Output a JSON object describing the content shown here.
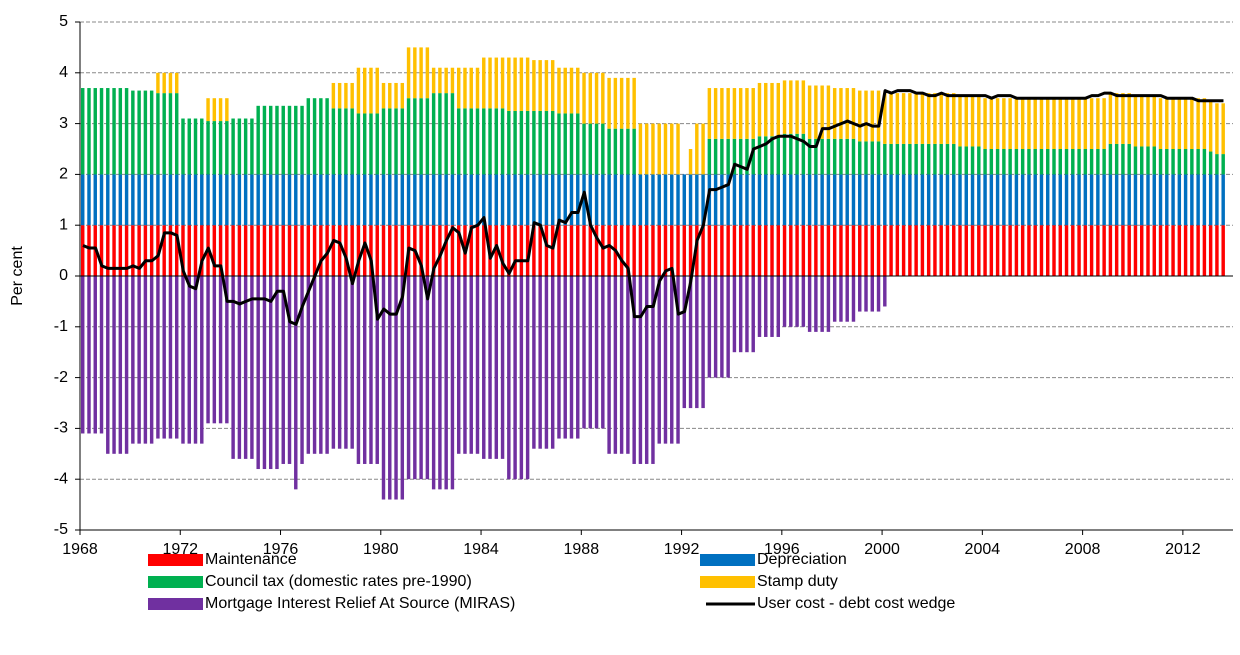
{
  "chart_data": {
    "type": "bar",
    "y_label": "Per cent",
    "xlim": [
      1968,
      2014
    ],
    "xticks": [
      1968,
      1972,
      1976,
      1980,
      1984,
      1988,
      1992,
      1996,
      2000,
      2004,
      2008,
      2012
    ],
    "ylim": [
      -5,
      5
    ],
    "yticks": [
      -5,
      -4,
      -3,
      -2,
      -1,
      0,
      1,
      2,
      3,
      4,
      5
    ],
    "grid": true,
    "x": [
      1968,
      1968.25,
      1968.5,
      1968.75,
      1969,
      1969.25,
      1969.5,
      1969.75,
      1970,
      1970.25,
      1970.5,
      1970.75,
      1971,
      1971.25,
      1971.5,
      1971.75,
      1972,
      1972.25,
      1972.5,
      1972.75,
      1973,
      1973.25,
      1973.5,
      1973.75,
      1974,
      1974.25,
      1974.5,
      1974.75,
      1975,
      1975.25,
      1975.5,
      1975.75,
      1976,
      1976.25,
      1976.5,
      1976.75,
      1977,
      1977.25,
      1977.5,
      1977.75,
      1978,
      1978.25,
      1978.5,
      1978.75,
      1979,
      1979.25,
      1979.5,
      1979.75,
      1980,
      1980.25,
      1980.5,
      1980.75,
      1981,
      1981.25,
      1981.5,
      1981.75,
      1982,
      1982.25,
      1982.5,
      1982.75,
      1983,
      1983.25,
      1983.5,
      1983.75,
      1984,
      1984.25,
      1984.5,
      1984.75,
      1985,
      1985.25,
      1985.5,
      1985.75,
      1986,
      1986.25,
      1986.5,
      1986.75,
      1987,
      1987.25,
      1987.5,
      1987.75,
      1988,
      1988.25,
      1988.5,
      1988.75,
      1989,
      1989.25,
      1989.5,
      1989.75,
      1990,
      1990.25,
      1990.5,
      1990.75,
      1991,
      1991.25,
      1991.5,
      1991.75,
      1992,
      1992.25,
      1992.5,
      1992.75,
      1993,
      1993.25,
      1993.5,
      1993.75,
      1994,
      1994.25,
      1994.5,
      1994.75,
      1995,
      1995.25,
      1995.5,
      1995.75,
      1996,
      1996.25,
      1996.5,
      1996.75,
      1997,
      1997.25,
      1997.5,
      1997.75,
      1998,
      1998.25,
      1998.5,
      1998.75,
      1999,
      1999.25,
      1999.5,
      1999.75,
      2000,
      2000.25,
      2000.5,
      2000.75,
      2001,
      2001.25,
      2001.5,
      2001.75,
      2002,
      2002.25,
      2002.5,
      2002.75,
      2003,
      2003.25,
      2003.5,
      2003.75,
      2004,
      2004.25,
      2004.5,
      2004.75,
      2005,
      2005.25,
      2005.5,
      2005.75,
      2006,
      2006.25,
      2006.5,
      2006.75,
      2007,
      2007.25,
      2007.5,
      2007.75,
      2008,
      2008.25,
      2008.5,
      2008.75,
      2009,
      2009.25,
      2009.5,
      2009.75,
      2010,
      2010.25,
      2010.5,
      2010.75,
      2011,
      2011.25,
      2011.5,
      2011.75,
      2012,
      2012.25,
      2012.5,
      2012.75,
      2013,
      2013.25,
      2013.5
    ],
    "series": [
      {
        "name": "Maintenance",
        "color": "#ff0000",
        "values": [
          1,
          1,
          1,
          1,
          1,
          1,
          1,
          1,
          1,
          1,
          1,
          1,
          1,
          1,
          1,
          1,
          1,
          1,
          1,
          1,
          1,
          1,
          1,
          1,
          1,
          1,
          1,
          1,
          1,
          1,
          1,
          1,
          1,
          1,
          1,
          1,
          1,
          1,
          1,
          1,
          1,
          1,
          1,
          1,
          1,
          1,
          1,
          1,
          1,
          1,
          1,
          1,
          1,
          1,
          1,
          1,
          1,
          1,
          1,
          1,
          1,
          1,
          1,
          1,
          1,
          1,
          1,
          1,
          1,
          1,
          1,
          1,
          1,
          1,
          1,
          1,
          1,
          1,
          1,
          1,
          1,
          1,
          1,
          1,
          1,
          1,
          1,
          1,
          1,
          1,
          1,
          1,
          1,
          1,
          1,
          1,
          1,
          1,
          1,
          1,
          1,
          1,
          1,
          1,
          1,
          1,
          1,
          1,
          1,
          1,
          1,
          1,
          1,
          1,
          1,
          1,
          1,
          1,
          1,
          1,
          1,
          1,
          1,
          1,
          1,
          1,
          1,
          1,
          1,
          1,
          1,
          1,
          1,
          1,
          1,
          1,
          1,
          1,
          1,
          1,
          1,
          1,
          1,
          1,
          1,
          1,
          1,
          1,
          1,
          1,
          1,
          1,
          1,
          1,
          1,
          1,
          1,
          1,
          1,
          1,
          1,
          1,
          1,
          1,
          1,
          1,
          1,
          1,
          1,
          1,
          1,
          1,
          1,
          1,
          1,
          1,
          1,
          1,
          1,
          1,
          1,
          1,
          1
        ]
      },
      {
        "name": "Depreciation",
        "color": "#0070c0",
        "values": [
          1,
          1,
          1,
          1,
          1,
          1,
          1,
          1,
          1,
          1,
          1,
          1,
          1,
          1,
          1,
          1,
          1,
          1,
          1,
          1,
          1,
          1,
          1,
          1,
          1,
          1,
          1,
          1,
          1,
          1,
          1,
          1,
          1,
          1,
          1,
          1,
          1,
          1,
          1,
          1,
          1,
          1,
          1,
          1,
          1,
          1,
          1,
          1,
          1,
          1,
          1,
          1,
          1,
          1,
          1,
          1,
          1,
          1,
          1,
          1,
          1,
          1,
          1,
          1,
          1,
          1,
          1,
          1,
          1,
          1,
          1,
          1,
          1,
          1,
          1,
          1,
          1,
          1,
          1,
          1,
          1,
          1,
          1,
          1,
          1,
          1,
          1,
          1,
          1,
          1,
          1,
          1,
          1,
          1,
          1,
          1,
          1,
          1,
          1,
          1,
          1,
          1,
          1,
          1,
          1,
          1,
          1,
          1,
          1,
          1,
          1,
          1,
          1,
          1,
          1,
          1,
          1,
          1,
          1,
          1,
          1,
          1,
          1,
          1,
          1,
          1,
          1,
          1,
          1,
          1,
          1,
          1,
          1,
          1,
          1,
          1,
          1,
          1,
          1,
          1,
          1,
          1,
          1,
          1,
          1,
          1,
          1,
          1,
          1,
          1,
          1,
          1,
          1,
          1,
          1,
          1,
          1,
          1,
          1,
          1,
          1,
          1,
          1,
          1,
          1,
          1,
          1,
          1,
          1,
          1,
          1,
          1,
          1,
          1,
          1,
          1,
          1,
          1,
          1,
          1,
          1,
          1,
          1
        ]
      },
      {
        "name": "Council tax (domestic rates pre-1990)",
        "color": "#00b050",
        "values": [
          1.7,
          1.7,
          1.7,
          1.7,
          1.7,
          1.7,
          1.7,
          1.7,
          1.65,
          1.65,
          1.65,
          1.65,
          1.6,
          1.6,
          1.6,
          1.6,
          1.1,
          1.1,
          1.1,
          1.1,
          1.05,
          1.05,
          1.05,
          1.05,
          1.1,
          1.1,
          1.1,
          1.1,
          1.35,
          1.35,
          1.35,
          1.35,
          1.35,
          1.35,
          1.35,
          1.35,
          1.5,
          1.5,
          1.5,
          1.5,
          1.3,
          1.3,
          1.3,
          1.3,
          1.2,
          1.2,
          1.2,
          1.2,
          1.3,
          1.3,
          1.3,
          1.3,
          1.5,
          1.5,
          1.5,
          1.5,
          1.6,
          1.6,
          1.6,
          1.6,
          1.3,
          1.3,
          1.3,
          1.3,
          1.3,
          1.3,
          1.3,
          1.3,
          1.25,
          1.25,
          1.25,
          1.25,
          1.25,
          1.25,
          1.25,
          1.25,
          1.2,
          1.2,
          1.2,
          1.2,
          1,
          1,
          1,
          1,
          0.9,
          0.9,
          0.9,
          0.9,
          0.9,
          0,
          0,
          0,
          0,
          0,
          0,
          0,
          0,
          0,
          0,
          0,
          0.7,
          0.7,
          0.7,
          0.7,
          0.7,
          0.7,
          0.7,
          0.7,
          0.75,
          0.75,
          0.75,
          0.75,
          0.8,
          0.8,
          0.8,
          0.8,
          0.7,
          0.7,
          0.7,
          0.7,
          0.7,
          0.7,
          0.7,
          0.7,
          0.65,
          0.65,
          0.65,
          0.65,
          0.6,
          0.6,
          0.6,
          0.6,
          0.6,
          0.6,
          0.6,
          0.6,
          0.6,
          0.6,
          0.6,
          0.6,
          0.55,
          0.55,
          0.55,
          0.55,
          0.5,
          0.5,
          0.5,
          0.5,
          0.5,
          0.5,
          0.5,
          0.5,
          0.5,
          0.5,
          0.5,
          0.5,
          0.5,
          0.5,
          0.5,
          0.5,
          0.5,
          0.5,
          0.5,
          0.5,
          0.6,
          0.6,
          0.6,
          0.6,
          0.55,
          0.55,
          0.55,
          0.55,
          0.5,
          0.5,
          0.5,
          0.5,
          0.5,
          0.5,
          0.5,
          0.5,
          0.45,
          0.4,
          0.4
        ]
      },
      {
        "name": "Stamp duty",
        "color": "#ffc000",
        "values": [
          0,
          0,
          0,
          0,
          0,
          0,
          0,
          0,
          0,
          0,
          0,
          0,
          0.4,
          0.4,
          0.4,
          0.4,
          0,
          0,
          0,
          0,
          0.45,
          0.45,
          0.45,
          0.45,
          0,
          0,
          0,
          0,
          0,
          0,
          0,
          0,
          0,
          0,
          0,
          0,
          0,
          0,
          0,
          0,
          0.5,
          0.5,
          0.5,
          0.5,
          0.9,
          0.9,
          0.9,
          0.9,
          0.5,
          0.5,
          0.5,
          0.5,
          1,
          1,
          1,
          1,
          0.5,
          0.5,
          0.5,
          0.5,
          0.8,
          0.8,
          0.8,
          0.8,
          1,
          1,
          1,
          1,
          1.05,
          1.05,
          1.05,
          1.05,
          1,
          1,
          1,
          1,
          0.9,
          0.9,
          0.9,
          0.9,
          1,
          1,
          1,
          1,
          1,
          1,
          1,
          1,
          1,
          1,
          1,
          1,
          1,
          1,
          1,
          1,
          0,
          0.5,
          1,
          1,
          1,
          1,
          1,
          1,
          1,
          1,
          1,
          1,
          1.05,
          1.05,
          1.05,
          1.05,
          1.05,
          1.05,
          1.05,
          1.05,
          1.05,
          1.05,
          1.05,
          1.05,
          1,
          1,
          1,
          1,
          1,
          1,
          1,
          1,
          1,
          1,
          1,
          1,
          1,
          1,
          1,
          1,
          1,
          1,
          1,
          1,
          1,
          1,
          1,
          1,
          1,
          1,
          1,
          1,
          1,
          1,
          1,
          1,
          1,
          1,
          1,
          1,
          1,
          1,
          1,
          1,
          1,
          1,
          1,
          1,
          1,
          1,
          1,
          1,
          1,
          1,
          1,
          1,
          1,
          1,
          1,
          1,
          1,
          1,
          1,
          1,
          1,
          1,
          1
        ]
      },
      {
        "name": "Mortgage Interest Relief At Source (MIRAS)",
        "color": "#7030a0",
        "values": [
          -3.1,
          -3.1,
          -3.1,
          -3.1,
          -3.5,
          -3.5,
          -3.5,
          -3.5,
          -3.3,
          -3.3,
          -3.3,
          -3.3,
          -3.2,
          -3.2,
          -3.2,
          -3.2,
          -3.3,
          -3.3,
          -3.3,
          -3.3,
          -2.9,
          -2.9,
          -2.9,
          -2.9,
          -3.6,
          -3.6,
          -3.6,
          -3.6,
          -3.8,
          -3.8,
          -3.8,
          -3.8,
          -3.7,
          -3.7,
          -4.2,
          -3.7,
          -3.5,
          -3.5,
          -3.5,
          -3.5,
          -3.4,
          -3.4,
          -3.4,
          -3.4,
          -3.7,
          -3.7,
          -3.7,
          -3.7,
          -4.4,
          -4.4,
          -4.4,
          -4.4,
          -4,
          -4,
          -4,
          -4,
          -4.2,
          -4.2,
          -4.2,
          -4.2,
          -3.5,
          -3.5,
          -3.5,
          -3.5,
          -3.6,
          -3.6,
          -3.6,
          -3.6,
          -4,
          -4,
          -4,
          -4,
          -3.4,
          -3.4,
          -3.4,
          -3.4,
          -3.2,
          -3.2,
          -3.2,
          -3.2,
          -3,
          -3,
          -3,
          -3,
          -3.5,
          -3.5,
          -3.5,
          -3.5,
          -3.7,
          -3.7,
          -3.7,
          -3.7,
          -3.3,
          -3.3,
          -3.3,
          -3.3,
          -2.6,
          -2.6,
          -2.6,
          -2.6,
          -2,
          -2,
          -2,
          -2,
          -1.5,
          -1.5,
          -1.5,
          -1.5,
          -1.2,
          -1.2,
          -1.2,
          -1.2,
          -1,
          -1,
          -1,
          -1,
          -1.1,
          -1.1,
          -1.1,
          -1.1,
          -0.9,
          -0.9,
          -0.9,
          -0.9,
          -0.7,
          -0.7,
          -0.7,
          -0.7,
          -0.6,
          0,
          0,
          0,
          0,
          0,
          0,
          0,
          0,
          0,
          0,
          0,
          0,
          0,
          0,
          0,
          0,
          0,
          0,
          0,
          0,
          0,
          0,
          0,
          0,
          0,
          0,
          0,
          0,
          0,
          0,
          0,
          0,
          0,
          0,
          0,
          0,
          0,
          0,
          0,
          0,
          0,
          0,
          0,
          0,
          0,
          0,
          0,
          0,
          0,
          0,
          0,
          0,
          0,
          0
        ]
      },
      {
        "name": "User cost - debt cost wedge",
        "color": "#000000",
        "type": "line",
        "values": [
          0.6,
          0.55,
          0.55,
          0.2,
          0.15,
          0.15,
          0.15,
          0.15,
          0.2,
          0.15,
          0.3,
          0.3,
          0.4,
          0.85,
          0.85,
          0.8,
          0.1,
          -0.2,
          -0.25,
          0.3,
          0.55,
          0.2,
          0.2,
          -0.5,
          -0.5,
          -0.55,
          -0.5,
          -0.45,
          -0.45,
          -0.45,
          -0.5,
          -0.3,
          -0.3,
          -0.9,
          -0.95,
          -0.6,
          -0.3,
          0,
          0.3,
          0.45,
          0.7,
          0.65,
          0.35,
          -0.15,
          0.3,
          0.65,
          0.3,
          -0.85,
          -0.65,
          -0.75,
          -0.75,
          -0.4,
          0.55,
          0.5,
          0.2,
          -0.45,
          0.15,
          0.4,
          0.7,
          0.95,
          0.85,
          0.45,
          0.95,
          1,
          1.15,
          0.35,
          0.6,
          0.25,
          0.05,
          0.3,
          0.3,
          0.3,
          1.05,
          1,
          0.6,
          0.55,
          1.1,
          1.05,
          1.25,
          1.25,
          1.65,
          1,
          0.75,
          0.55,
          0.6,
          0.5,
          0.3,
          0.15,
          -0.8,
          -0.8,
          -0.6,
          -0.6,
          -0.1,
          0.1,
          0.15,
          -0.75,
          -0.7,
          -0.1,
          0.7,
          1,
          1.7,
          1.7,
          1.75,
          1.8,
          2.2,
          2.15,
          2.1,
          2.5,
          2.55,
          2.6,
          2.7,
          2.75,
          2.75,
          2.75,
          2.7,
          2.65,
          2.55,
          2.55,
          2.9,
          2.9,
          2.95,
          3,
          3.05,
          3,
          2.95,
          3,
          2.95,
          2.95,
          3.65,
          3.6,
          3.65,
          3.65,
          3.65,
          3.6,
          3.6,
          3.55,
          3.55,
          3.6,
          3.55,
          3.55,
          3.55,
          3.55,
          3.55,
          3.55,
          3.55,
          3.5,
          3.55,
          3.55,
          3.55,
          3.5,
          3.5,
          3.5,
          3.5,
          3.5,
          3.5,
          3.5,
          3.5,
          3.5,
          3.5,
          3.5,
          3.5,
          3.55,
          3.55,
          3.6,
          3.6,
          3.55,
          3.55,
          3.55,
          3.55,
          3.55,
          3.55,
          3.55,
          3.55,
          3.5,
          3.5,
          3.5,
          3.5,
          3.5,
          3.45,
          3.45,
          3.45,
          3.45,
          3.45
        ]
      }
    ]
  }
}
